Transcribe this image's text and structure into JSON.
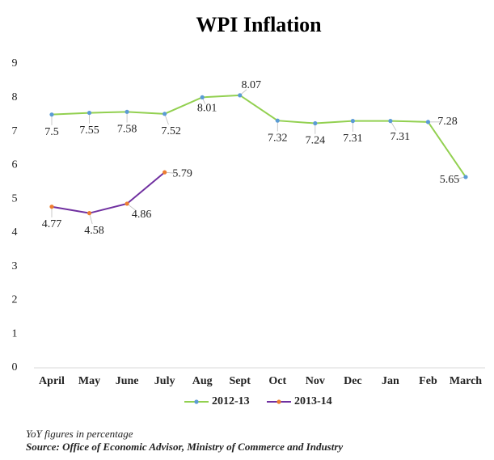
{
  "chart_data": {
    "type": "line",
    "title": "WPI Inflation",
    "categories": [
      "April",
      "May",
      "June",
      "July",
      "Aug",
      "Sept",
      "Oct",
      "Nov",
      "Dec",
      "Jan",
      "Feb",
      "March"
    ],
    "series": [
      {
        "name": "2012-13",
        "color": "#92d050",
        "marker_color": "#5b9bd5",
        "values": [
          7.5,
          7.55,
          7.58,
          7.52,
          8.01,
          8.07,
          7.32,
          7.24,
          7.31,
          7.31,
          7.28,
          5.65
        ]
      },
      {
        "name": "2013-14",
        "color": "#7030a0",
        "marker_color": "#ed7d31",
        "values": [
          4.77,
          4.58,
          4.86,
          5.79,
          null,
          null,
          null,
          null,
          null,
          null,
          null,
          null
        ]
      }
    ],
    "ylim": [
      0,
      9
    ],
    "yticks": [
      0,
      1,
      2,
      3,
      4,
      5,
      6,
      7,
      8,
      9
    ],
    "grid": false,
    "legend": "bottom",
    "note": "YoY figures in percentage",
    "source": "Source: Office of Economic Advisor, Ministry of Commerce and Industry"
  }
}
